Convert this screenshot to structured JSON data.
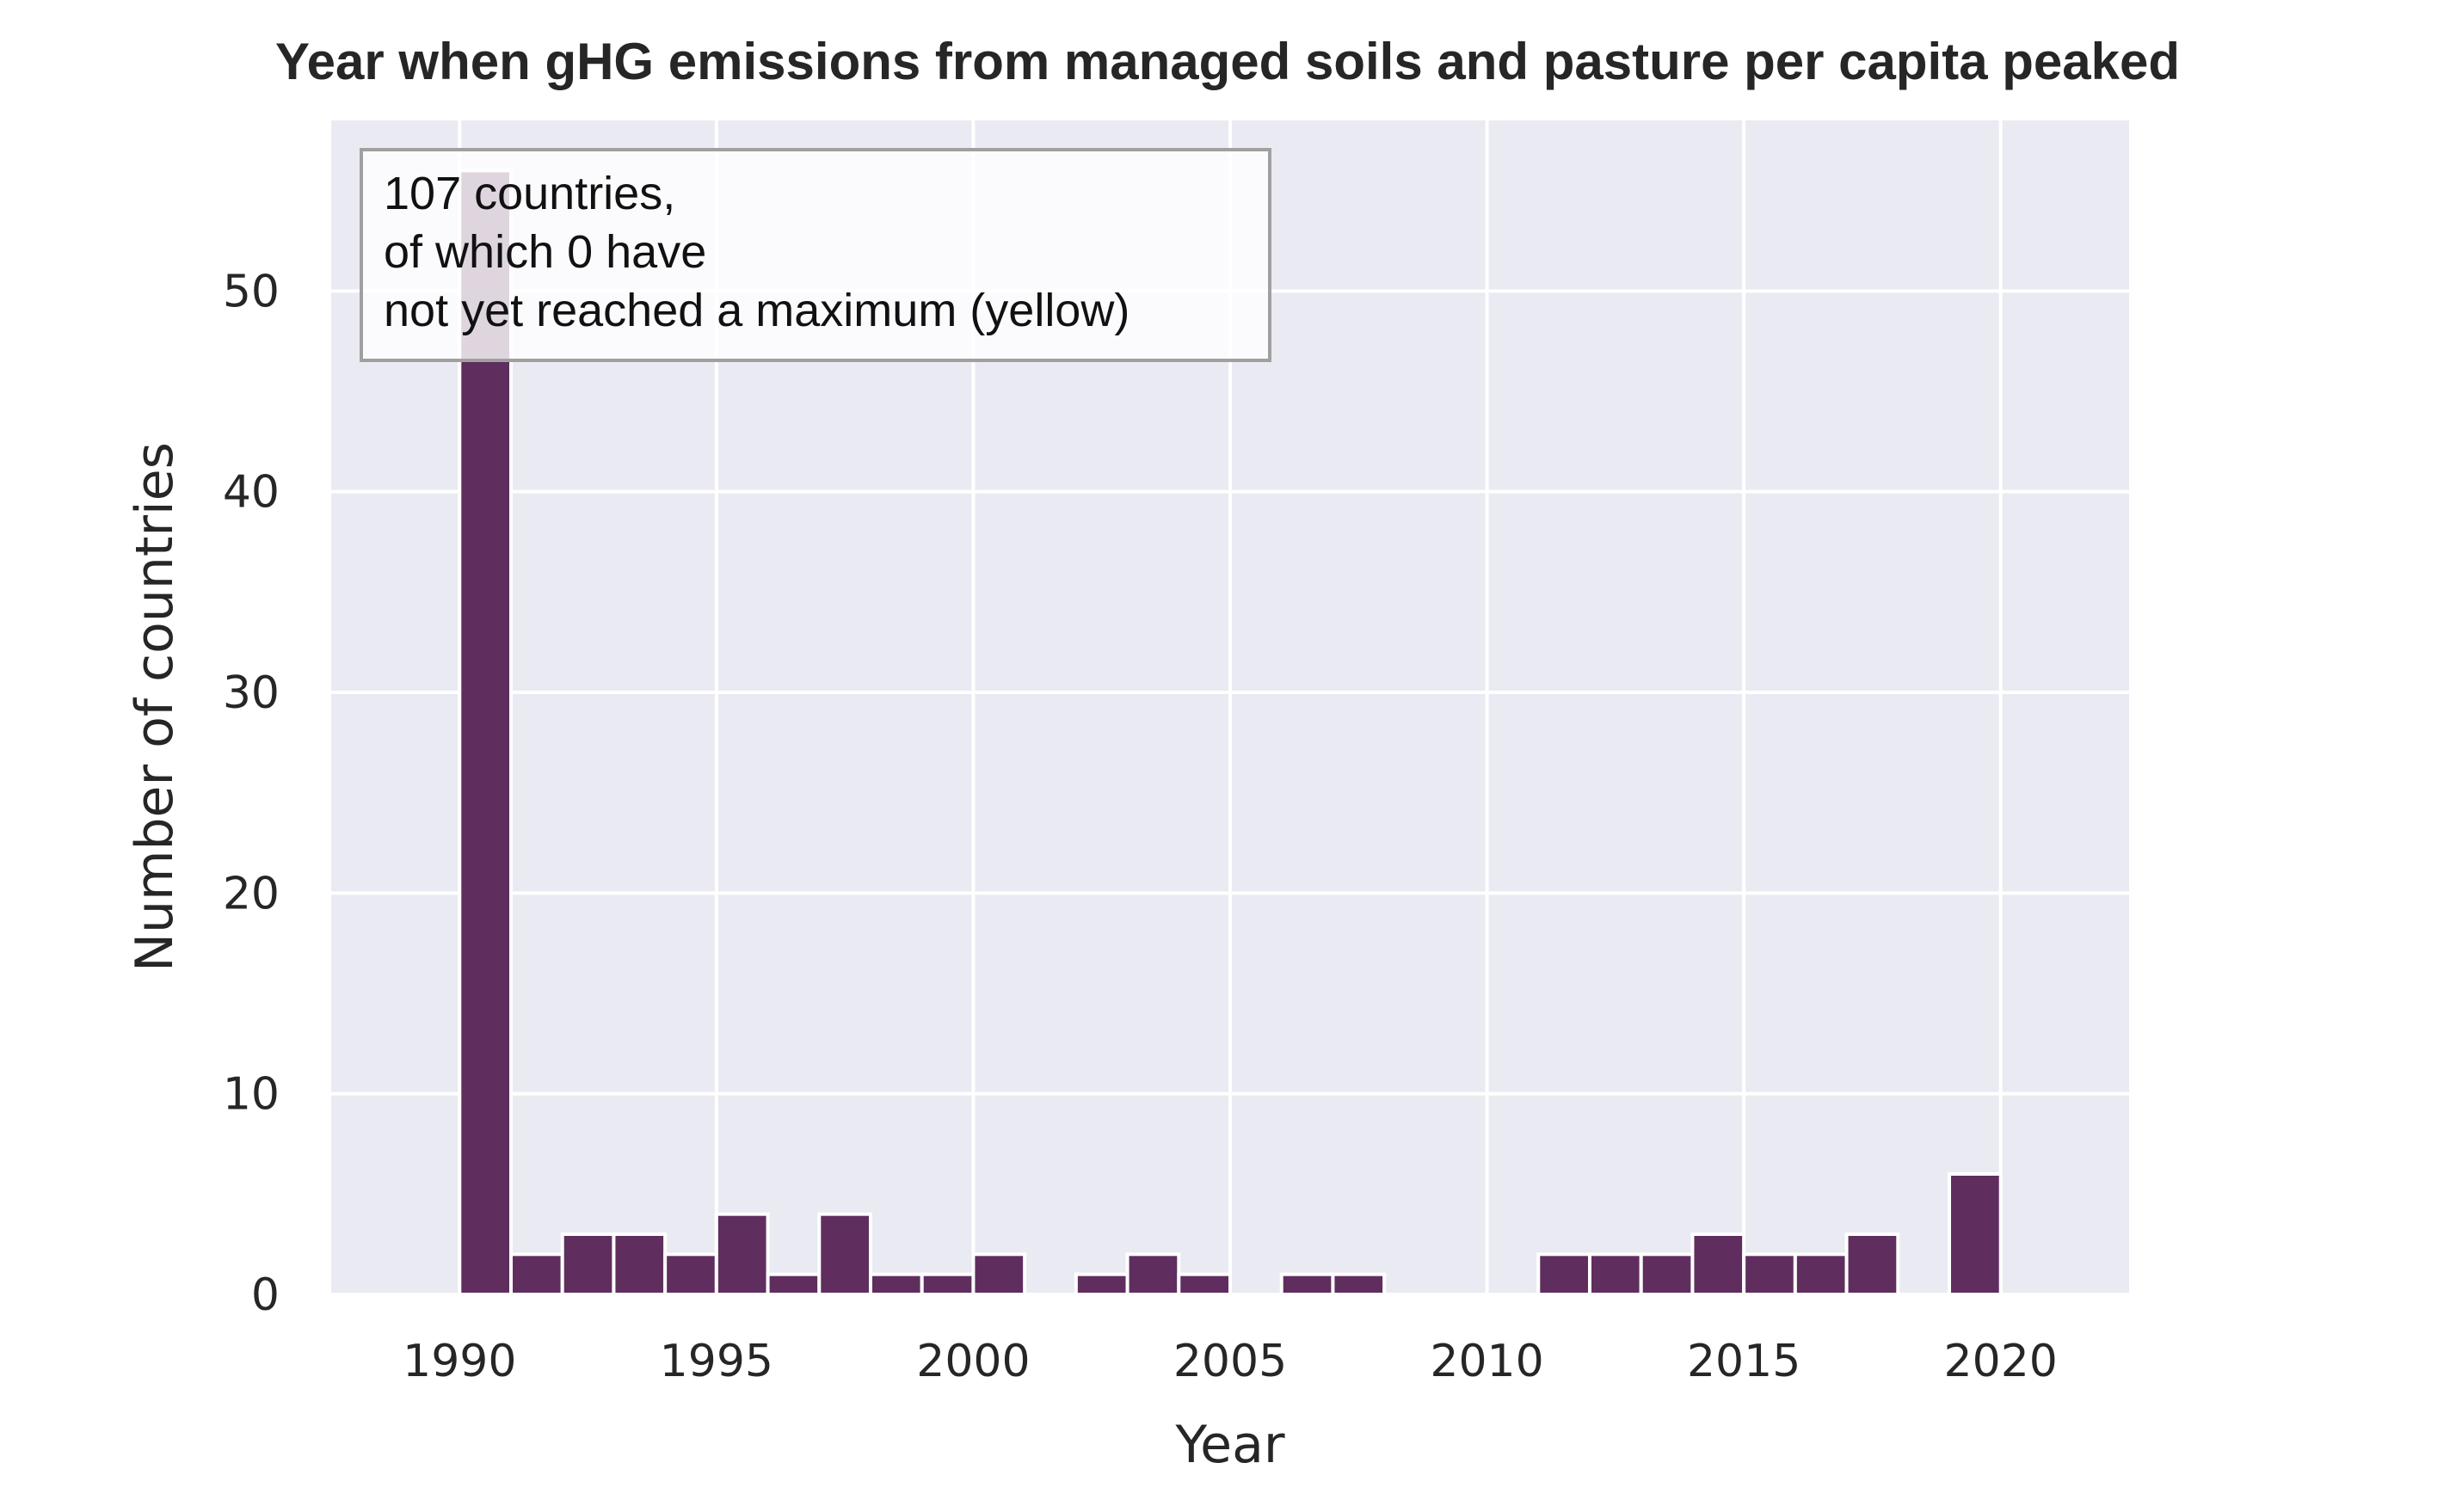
{
  "chart_data": {
    "type": "bar",
    "title": "Year when gHG emissions from managed soils and pasture per capita peaked",
    "xlabel": "Year",
    "ylabel": "Number of countries",
    "xlim": [
      1987.5,
      2022.5
    ],
    "ylim": [
      0,
      58.5
    ],
    "x_ticks": [
      1990,
      1995,
      2000,
      2005,
      2010,
      2015,
      2020
    ],
    "y_ticks": [
      0,
      10,
      20,
      30,
      40,
      50
    ],
    "grid": true,
    "bar_color": "#5f2e5e",
    "background_color": "#eaeaf2",
    "grid_color": "#ffffff",
    "categories": [
      1990,
      1991,
      1992,
      1993,
      1994,
      1995,
      1996,
      1997,
      1998,
      1999,
      2000,
      2001,
      2002,
      2003,
      2004,
      2005,
      2006,
      2007,
      2008,
      2009,
      2010,
      2011,
      2012,
      2013,
      2014,
      2015,
      2016,
      2017,
      2018,
      2019,
      2020
    ],
    "values": [
      56,
      2,
      3,
      3,
      2,
      4,
      1,
      4,
      1,
      1,
      2,
      0,
      1,
      2,
      1,
      0,
      1,
      1,
      0,
      0,
      0,
      2,
      2,
      2,
      3,
      2,
      2,
      3,
      0,
      6,
      0
    ],
    "annotation": {
      "lines": [
        "107 countries,",
        "of which 0 have",
        "not yet reached a maximum (yellow)"
      ],
      "placement": "top-left"
    }
  }
}
